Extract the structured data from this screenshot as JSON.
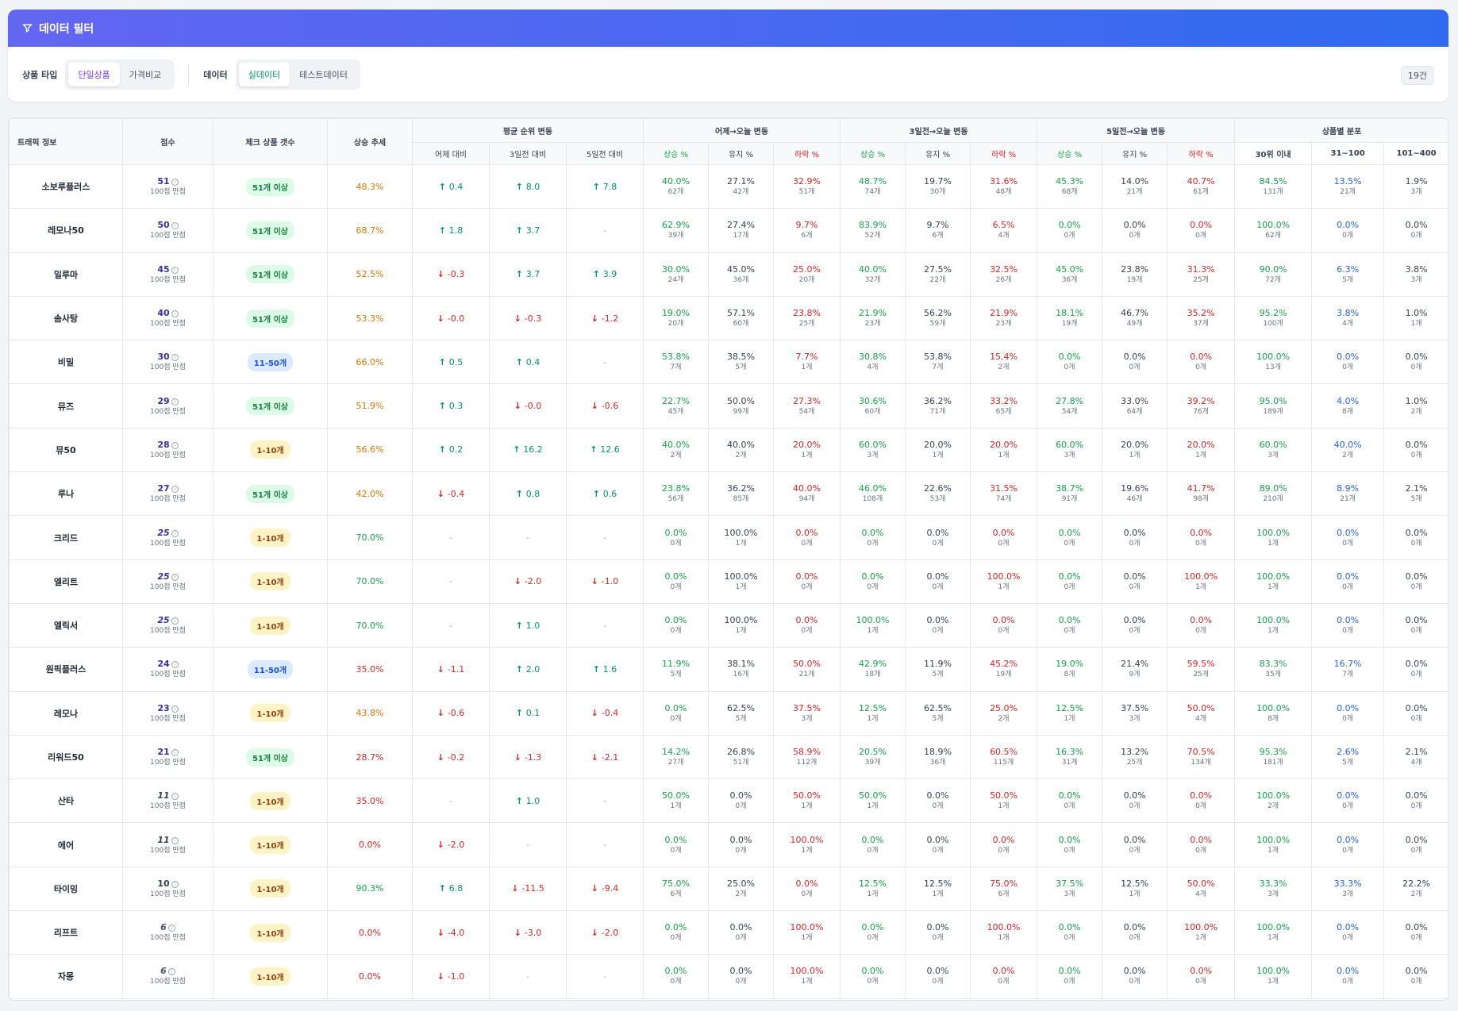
{
  "filter": {
    "title": "데이터 필터",
    "product_type_label": "상품 타입",
    "product_type_options": [
      "단일상품",
      "가격비교"
    ],
    "data_label": "데이터",
    "data_options": [
      "실데이터",
      "테스트데이터"
    ],
    "count": "19건",
    "colors": {
      "active_product": "#7c3aed",
      "active_data": "#059669"
    }
  },
  "headers": {
    "traffic": "트래픽 정보",
    "score": "점수",
    "check_count": "체크 상품 갯수",
    "trend": "상승 추세",
    "avg_rank": "평균 순위 변동",
    "avg_sub": [
      "어제 대비",
      "3일전 대비",
      "5일전 대비"
    ],
    "d1": "어제→오늘 변동",
    "d3": "3일전→오늘 변동",
    "d5": "5일전→오늘 변동",
    "chg_sub": [
      "상승 %",
      "유지 %",
      "하락 %"
    ],
    "dist": "상품별 분포",
    "dist_sub": [
      "30위 이내",
      "31~100",
      "101~400"
    ],
    "score_sub": "100점 만점"
  },
  "rows": [
    {
      "name": "소보루플러스",
      "score": "51",
      "italic": false,
      "badge": "51개 이상",
      "trend": "48.3%",
      "avg": [
        "0.4",
        "8.0",
        "7.8"
      ],
      "d1": [
        [
          "40.0%",
          "62개"
        ],
        [
          "27.1%",
          "42개"
        ],
        [
          "32.9%",
          "51개"
        ]
      ],
      "d3": [
        [
          "48.7%",
          "74개"
        ],
        [
          "19.7%",
          "30개"
        ],
        [
          "31.6%",
          "48개"
        ]
      ],
      "d5": [
        [
          "45.3%",
          "68개"
        ],
        [
          "14.0%",
          "21개"
        ],
        [
          "40.7%",
          "61개"
        ]
      ],
      "dist": [
        [
          "84.5%",
          "131개"
        ],
        [
          "13.5%",
          "21개"
        ],
        [
          "1.9%",
          "3개"
        ]
      ]
    },
    {
      "name": "레모나50",
      "score": "50",
      "italic": false,
      "badge": "51개 이상",
      "trend": "68.7%",
      "avg": [
        "1.8",
        "3.7",
        "-"
      ],
      "d1": [
        [
          "62.9%",
          "39개"
        ],
        [
          "27.4%",
          "17개"
        ],
        [
          "9.7%",
          "6개"
        ]
      ],
      "d3": [
        [
          "83.9%",
          "52개"
        ],
        [
          "9.7%",
          "6개"
        ],
        [
          "6.5%",
          "4개"
        ]
      ],
      "d5": [
        [
          "0.0%",
          "0개"
        ],
        [
          "0.0%",
          "0개"
        ],
        [
          "0.0%",
          "0개"
        ]
      ],
      "dist": [
        [
          "100.0%",
          "62개"
        ],
        [
          "0.0%",
          "0개"
        ],
        [
          "0.0%",
          "0개"
        ]
      ]
    },
    {
      "name": "일루마",
      "score": "45",
      "italic": false,
      "badge": "51개 이상",
      "trend": "52.5%",
      "avg": [
        "-0.3",
        "3.7",
        "3.9"
      ],
      "d1": [
        [
          "30.0%",
          "24개"
        ],
        [
          "45.0%",
          "36개"
        ],
        [
          "25.0%",
          "20개"
        ]
      ],
      "d3": [
        [
          "40.0%",
          "32개"
        ],
        [
          "27.5%",
          "22개"
        ],
        [
          "32.5%",
          "26개"
        ]
      ],
      "d5": [
        [
          "45.0%",
          "36개"
        ],
        [
          "23.8%",
          "19개"
        ],
        [
          "31.3%",
          "25개"
        ]
      ],
      "dist": [
        [
          "90.0%",
          "72개"
        ],
        [
          "6.3%",
          "5개"
        ],
        [
          "3.8%",
          "3개"
        ]
      ]
    },
    {
      "name": "솜사탕",
      "score": "40",
      "italic": false,
      "badge": "51개 이상",
      "trend": "53.3%",
      "avg": [
        "-0.0",
        "-0.3",
        "-1.2"
      ],
      "d1": [
        [
          "19.0%",
          "20개"
        ],
        [
          "57.1%",
          "60개"
        ],
        [
          "23.8%",
          "25개"
        ]
      ],
      "d3": [
        [
          "21.9%",
          "23개"
        ],
        [
          "56.2%",
          "59개"
        ],
        [
          "21.9%",
          "23개"
        ]
      ],
      "d5": [
        [
          "18.1%",
          "19개"
        ],
        [
          "46.7%",
          "49개"
        ],
        [
          "35.2%",
          "37개"
        ]
      ],
      "dist": [
        [
          "95.2%",
          "100개"
        ],
        [
          "3.8%",
          "4개"
        ],
        [
          "1.0%",
          "1개"
        ]
      ]
    },
    {
      "name": "비밀",
      "score": "30",
      "italic": false,
      "badge": "11-50개",
      "trend": "66.0%",
      "avg": [
        "0.5",
        "0.4",
        "-"
      ],
      "d1": [
        [
          "53.8%",
          "7개"
        ],
        [
          "38.5%",
          "5개"
        ],
        [
          "7.7%",
          "1개"
        ]
      ],
      "d3": [
        [
          "30.8%",
          "4개"
        ],
        [
          "53.8%",
          "7개"
        ],
        [
          "15.4%",
          "2개"
        ]
      ],
      "d5": [
        [
          "0.0%",
          "0개"
        ],
        [
          "0.0%",
          "0개"
        ],
        [
          "0.0%",
          "0개"
        ]
      ],
      "dist": [
        [
          "100.0%",
          "13개"
        ],
        [
          "0.0%",
          "0개"
        ],
        [
          "0.0%",
          "0개"
        ]
      ]
    },
    {
      "name": "뮤즈",
      "score": "29",
      "italic": false,
      "badge": "51개 이상",
      "trend": "51.9%",
      "avg": [
        "0.3",
        "-0.0",
        "-0.6"
      ],
      "d1": [
        [
          "22.7%",
          "45개"
        ],
        [
          "50.0%",
          "99개"
        ],
        [
          "27.3%",
          "54개"
        ]
      ],
      "d3": [
        [
          "30.6%",
          "60개"
        ],
        [
          "36.2%",
          "71개"
        ],
        [
          "33.2%",
          "65개"
        ]
      ],
      "d5": [
        [
          "27.8%",
          "54개"
        ],
        [
          "33.0%",
          "64개"
        ],
        [
          "39.2%",
          "76개"
        ]
      ],
      "dist": [
        [
          "95.0%",
          "189개"
        ],
        [
          "4.0%",
          "8개"
        ],
        [
          "1.0%",
          "2개"
        ]
      ]
    },
    {
      "name": "뮤50",
      "score": "28",
      "italic": false,
      "badge": "1-10개",
      "trend": "56.6%",
      "avg": [
        "0.2",
        "16.2",
        "12.6"
      ],
      "d1": [
        [
          "40.0%",
          "2개"
        ],
        [
          "40.0%",
          "2개"
        ],
        [
          "20.0%",
          "1개"
        ]
      ],
      "d3": [
        [
          "60.0%",
          "3개"
        ],
        [
          "20.0%",
          "1개"
        ],
        [
          "20.0%",
          "1개"
        ]
      ],
      "d5": [
        [
          "60.0%",
          "3개"
        ],
        [
          "20.0%",
          "1개"
        ],
        [
          "20.0%",
          "1개"
        ]
      ],
      "dist": [
        [
          "60.0%",
          "3개"
        ],
        [
          "40.0%",
          "2개"
        ],
        [
          "0.0%",
          "0개"
        ]
      ]
    },
    {
      "name": "루나",
      "score": "27",
      "italic": false,
      "badge": "51개 이상",
      "trend": "42.0%",
      "avg": [
        "-0.4",
        "0.8",
        "0.6"
      ],
      "d1": [
        [
          "23.8%",
          "56개"
        ],
        [
          "36.2%",
          "85개"
        ],
        [
          "40.0%",
          "94개"
        ]
      ],
      "d3": [
        [
          "46.0%",
          "108개"
        ],
        [
          "22.6%",
          "53개"
        ],
        [
          "31.5%",
          "74개"
        ]
      ],
      "d5": [
        [
          "38.7%",
          "91개"
        ],
        [
          "19.6%",
          "46개"
        ],
        [
          "41.7%",
          "98개"
        ]
      ],
      "dist": [
        [
          "89.0%",
          "210개"
        ],
        [
          "8.9%",
          "21개"
        ],
        [
          "2.1%",
          "5개"
        ]
      ]
    },
    {
      "name": "크리드",
      "score": "25",
      "italic": true,
      "badge": "1-10개",
      "trend": "70.0%",
      "avg": [
        "-",
        "-",
        "-"
      ],
      "d1": [
        [
          "0.0%",
          "0개"
        ],
        [
          "100.0%",
          "1개"
        ],
        [
          "0.0%",
          "0개"
        ]
      ],
      "d3": [
        [
          "0.0%",
          "0개"
        ],
        [
          "0.0%",
          "0개"
        ],
        [
          "0.0%",
          "0개"
        ]
      ],
      "d5": [
        [
          "0.0%",
          "0개"
        ],
        [
          "0.0%",
          "0개"
        ],
        [
          "0.0%",
          "0개"
        ]
      ],
      "dist": [
        [
          "100.0%",
          "1개"
        ],
        [
          "0.0%",
          "0개"
        ],
        [
          "0.0%",
          "0개"
        ]
      ]
    },
    {
      "name": "엘리트",
      "score": "25",
      "italic": true,
      "badge": "1-10개",
      "trend": "70.0%",
      "avg": [
        "-",
        "-2.0",
        "-1.0"
      ],
      "d1": [
        [
          "0.0%",
          "0개"
        ],
        [
          "100.0%",
          "1개"
        ],
        [
          "0.0%",
          "0개"
        ]
      ],
      "d3": [
        [
          "0.0%",
          "0개"
        ],
        [
          "0.0%",
          "0개"
        ],
        [
          "100.0%",
          "1개"
        ]
      ],
      "d5": [
        [
          "0.0%",
          "0개"
        ],
        [
          "0.0%",
          "0개"
        ],
        [
          "100.0%",
          "1개"
        ]
      ],
      "dist": [
        [
          "100.0%",
          "1개"
        ],
        [
          "0.0%",
          "0개"
        ],
        [
          "0.0%",
          "0개"
        ]
      ]
    },
    {
      "name": "엘릭서",
      "score": "25",
      "italic": true,
      "badge": "1-10개",
      "trend": "70.0%",
      "avg": [
        "-",
        "1.0",
        "-"
      ],
      "d1": [
        [
          "0.0%",
          "0개"
        ],
        [
          "100.0%",
          "1개"
        ],
        [
          "0.0%",
          "0개"
        ]
      ],
      "d3": [
        [
          "100.0%",
          "1개"
        ],
        [
          "0.0%",
          "0개"
        ],
        [
          "0.0%",
          "0개"
        ]
      ],
      "d5": [
        [
          "0.0%",
          "0개"
        ],
        [
          "0.0%",
          "0개"
        ],
        [
          "0.0%",
          "0개"
        ]
      ],
      "dist": [
        [
          "100.0%",
          "1개"
        ],
        [
          "0.0%",
          "0개"
        ],
        [
          "0.0%",
          "0개"
        ]
      ]
    },
    {
      "name": "원픽플러스",
      "score": "24",
      "italic": false,
      "badge": "11-50개",
      "trend": "35.0%",
      "avg": [
        "-1.1",
        "2.0",
        "1.6"
      ],
      "d1": [
        [
          "11.9%",
          "5개"
        ],
        [
          "38.1%",
          "16개"
        ],
        [
          "50.0%",
          "21개"
        ]
      ],
      "d3": [
        [
          "42.9%",
          "18개"
        ],
        [
          "11.9%",
          "5개"
        ],
        [
          "45.2%",
          "19개"
        ]
      ],
      "d5": [
        [
          "19.0%",
          "8개"
        ],
        [
          "21.4%",
          "9개"
        ],
        [
          "59.5%",
          "25개"
        ]
      ],
      "dist": [
        [
          "83.3%",
          "35개"
        ],
        [
          "16.7%",
          "7개"
        ],
        [
          "0.0%",
          "0개"
        ]
      ]
    },
    {
      "name": "레모나",
      "score": "23",
      "italic": false,
      "badge": "1-10개",
      "trend": "43.8%",
      "avg": [
        "-0.6",
        "0.1",
        "-0.4"
      ],
      "d1": [
        [
          "0.0%",
          "0개"
        ],
        [
          "62.5%",
          "5개"
        ],
        [
          "37.5%",
          "3개"
        ]
      ],
      "d3": [
        [
          "12.5%",
          "1개"
        ],
        [
          "62.5%",
          "5개"
        ],
        [
          "25.0%",
          "2개"
        ]
      ],
      "d5": [
        [
          "12.5%",
          "1개"
        ],
        [
          "37.5%",
          "3개"
        ],
        [
          "50.0%",
          "4개"
        ]
      ],
      "dist": [
        [
          "100.0%",
          "8개"
        ],
        [
          "0.0%",
          "0개"
        ],
        [
          "0.0%",
          "0개"
        ]
      ]
    },
    {
      "name": "리워드50",
      "score": "21",
      "italic": false,
      "badge": "51개 이상",
      "trend": "28.7%",
      "avg": [
        "-0.2",
        "-1.3",
        "-2.1"
      ],
      "d1": [
        [
          "14.2%",
          "27개"
        ],
        [
          "26.8%",
          "51개"
        ],
        [
          "58.9%",
          "112개"
        ]
      ],
      "d3": [
        [
          "20.5%",
          "39개"
        ],
        [
          "18.9%",
          "36개"
        ],
        [
          "60.5%",
          "115개"
        ]
      ],
      "d5": [
        [
          "16.3%",
          "31개"
        ],
        [
          "13.2%",
          "25개"
        ],
        [
          "70.5%",
          "134개"
        ]
      ],
      "dist": [
        [
          "95.3%",
          "181개"
        ],
        [
          "2.6%",
          "5개"
        ],
        [
          "2.1%",
          "4개"
        ]
      ]
    },
    {
      "name": "산타",
      "score": "11",
      "italic": true,
      "badge": "1-10개",
      "trend": "35.0%",
      "avg": [
        "-",
        "1.0",
        "-"
      ],
      "d1": [
        [
          "50.0%",
          "1개"
        ],
        [
          "0.0%",
          "0개"
        ],
        [
          "50.0%",
          "1개"
        ]
      ],
      "d3": [
        [
          "50.0%",
          "1개"
        ],
        [
          "0.0%",
          "0개"
        ],
        [
          "50.0%",
          "1개"
        ]
      ],
      "d5": [
        [
          "0.0%",
          "0개"
        ],
        [
          "0.0%",
          "0개"
        ],
        [
          "0.0%",
          "0개"
        ]
      ],
      "dist": [
        [
          "100.0%",
          "2개"
        ],
        [
          "0.0%",
          "0개"
        ],
        [
          "0.0%",
          "0개"
        ]
      ]
    },
    {
      "name": "에어",
      "score": "11",
      "italic": true,
      "badge": "1-10개",
      "trend": "0.0%",
      "avg": [
        "-2.0",
        "-",
        "-"
      ],
      "d1": [
        [
          "0.0%",
          "0개"
        ],
        [
          "0.0%",
          "0개"
        ],
        [
          "100.0%",
          "1개"
        ]
      ],
      "d3": [
        [
          "0.0%",
          "0개"
        ],
        [
          "0.0%",
          "0개"
        ],
        [
          "0.0%",
          "0개"
        ]
      ],
      "d5": [
        [
          "0.0%",
          "0개"
        ],
        [
          "0.0%",
          "0개"
        ],
        [
          "0.0%",
          "0개"
        ]
      ],
      "dist": [
        [
          "100.0%",
          "1개"
        ],
        [
          "0.0%",
          "0개"
        ],
        [
          "0.0%",
          "0개"
        ]
      ]
    },
    {
      "name": "타이밍",
      "score": "10",
      "italic": false,
      "badge": "1-10개",
      "trend": "90.3%",
      "avg": [
        "6.8",
        "-11.5",
        "-9.4"
      ],
      "d1": [
        [
          "75.0%",
          "6개"
        ],
        [
          "25.0%",
          "2개"
        ],
        [
          "0.0%",
          "0개"
        ]
      ],
      "d3": [
        [
          "12.5%",
          "1개"
        ],
        [
          "12.5%",
          "1개"
        ],
        [
          "75.0%",
          "6개"
        ]
      ],
      "d5": [
        [
          "37.5%",
          "3개"
        ],
        [
          "12.5%",
          "1개"
        ],
        [
          "50.0%",
          "4개"
        ]
      ],
      "dist": [
        [
          "33.3%",
          "3개"
        ],
        [
          "33.3%",
          "3개"
        ],
        [
          "22.2%",
          "2개"
        ]
      ]
    },
    {
      "name": "리프트",
      "score": "6",
      "italic": true,
      "badge": "1-10개",
      "trend": "0.0%",
      "avg": [
        "-4.0",
        "-3.0",
        "-2.0"
      ],
      "d1": [
        [
          "0.0%",
          "0개"
        ],
        [
          "0.0%",
          "0개"
        ],
        [
          "100.0%",
          "1개"
        ]
      ],
      "d3": [
        [
          "0.0%",
          "0개"
        ],
        [
          "0.0%",
          "0개"
        ],
        [
          "100.0%",
          "1개"
        ]
      ],
      "d5": [
        [
          "0.0%",
          "0개"
        ],
        [
          "0.0%",
          "0개"
        ],
        [
          "100.0%",
          "1개"
        ]
      ],
      "dist": [
        [
          "100.0%",
          "1개"
        ],
        [
          "0.0%",
          "0개"
        ],
        [
          "0.0%",
          "0개"
        ]
      ]
    },
    {
      "name": "자몽",
      "score": "6",
      "italic": true,
      "badge": "1-10개",
      "trend": "0.0%",
      "avg": [
        "-1.0",
        "-",
        "-"
      ],
      "d1": [
        [
          "0.0%",
          "0개"
        ],
        [
          "0.0%",
          "0개"
        ],
        [
          "100.0%",
          "1개"
        ]
      ],
      "d3": [
        [
          "0.0%",
          "0개"
        ],
        [
          "0.0%",
          "0개"
        ],
        [
          "0.0%",
          "0개"
        ]
      ],
      "d5": [
        [
          "0.0%",
          "0개"
        ],
        [
          "0.0%",
          "0개"
        ],
        [
          "0.0%",
          "0개"
        ]
      ],
      "dist": [
        [
          "100.0%",
          "1개"
        ],
        [
          "0.0%",
          "0개"
        ],
        [
          "0.0%",
          "0개"
        ]
      ]
    }
  ]
}
